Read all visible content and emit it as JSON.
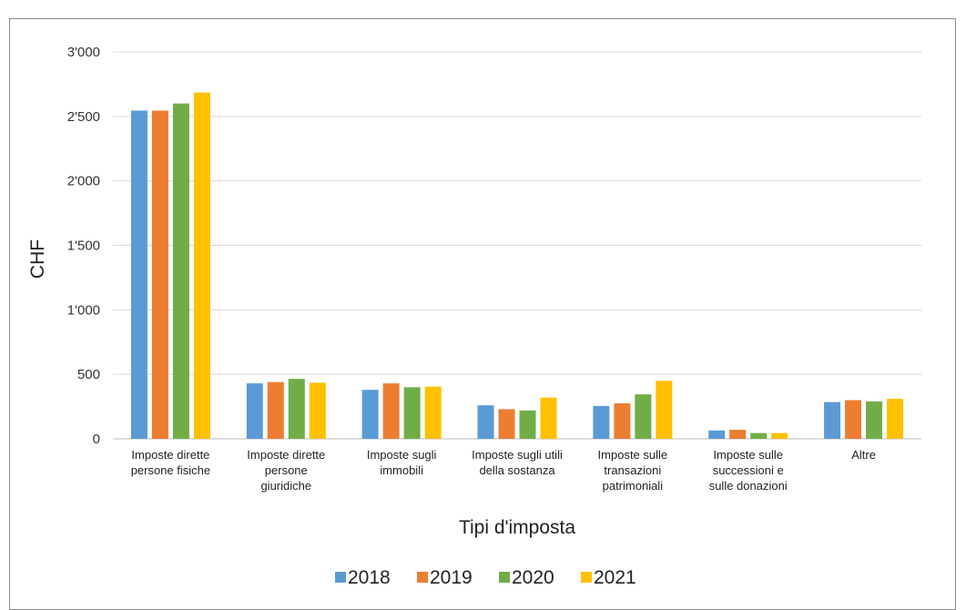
{
  "chart_data": {
    "type": "bar",
    "title": "",
    "xlabel": "Tipi d'imposta",
    "ylabel": "CHF",
    "ylim": [
      0,
      3000
    ],
    "yticks": [
      0,
      500,
      1000,
      1500,
      2000,
      2500,
      3000
    ],
    "ytick_labels": [
      "0",
      "500",
      "1'000",
      "1'500",
      "2'000",
      "2'500",
      "3'000"
    ],
    "grid": true,
    "legend_position": "bottom",
    "categories": [
      [
        "Imposte dirette",
        "persone fisiche"
      ],
      [
        "Imposte dirette",
        "persone",
        "giuridiche"
      ],
      [
        "Imposte sugli",
        "immobili"
      ],
      [
        "Imposte sugli utili",
        "della sostanza"
      ],
      [
        "Imposte sulle",
        "transazioni",
        "patrimoniali"
      ],
      [
        "Imposte sulle",
        "successioni e",
        "sulle donazioni"
      ],
      [
        "Altre"
      ]
    ],
    "series": [
      {
        "name": "2018",
        "color": "#5b9bd5",
        "values": [
          2545,
          430,
          380,
          260,
          255,
          65,
          285
        ]
      },
      {
        "name": "2019",
        "color": "#ed7d31",
        "values": [
          2545,
          440,
          430,
          230,
          275,
          70,
          300
        ]
      },
      {
        "name": "2020",
        "color": "#70ad47",
        "values": [
          2600,
          465,
          400,
          220,
          345,
          45,
          290
        ]
      },
      {
        "name": "2021",
        "color": "#ffc000",
        "values": [
          2685,
          435,
          405,
          320,
          450,
          45,
          310
        ]
      }
    ]
  }
}
